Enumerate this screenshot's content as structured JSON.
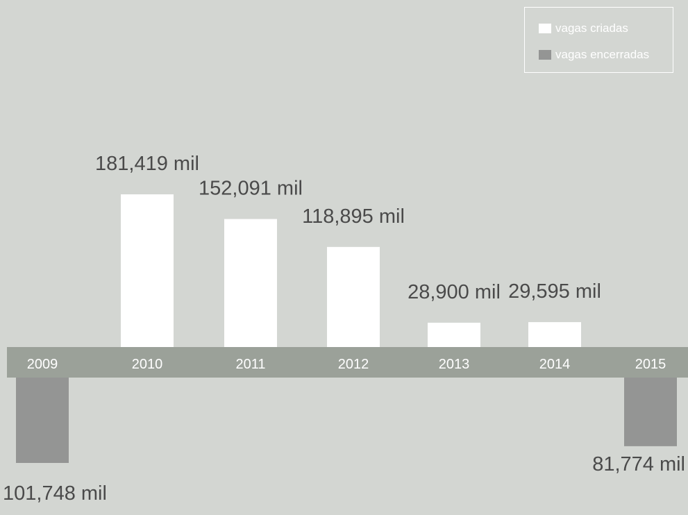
{
  "legend": {
    "items": [
      {
        "label": "vagas criadas",
        "color": "#ffffff"
      },
      {
        "label": "vagas encerradas",
        "color": "#949594"
      }
    ]
  },
  "colors": {
    "background": "#d3d6d2",
    "axis_band": "#9ba199",
    "year_text": "#ffffff",
    "value_text": "#4a4a4a"
  },
  "chart_data": {
    "type": "bar",
    "categories": [
      "2009",
      "2010",
      "2011",
      "2012",
      "2013",
      "2014",
      "2015"
    ],
    "values": [
      -101.748,
      181.419,
      152.091,
      118.895,
      28.9,
      29.595,
      -81.774
    ],
    "value_labels": [
      "101,748 mil",
      "181,419 mil",
      "152,091 mil",
      "118,895 mil",
      "28,900 mil",
      "29,595 mil",
      "81,774 mil"
    ],
    "series": [
      {
        "name": "vagas criadas",
        "color": "#ffffff"
      },
      {
        "name": "vagas encerradas",
        "color": "#949594"
      }
    ],
    "legend_position": "top-right",
    "grid": false
  }
}
